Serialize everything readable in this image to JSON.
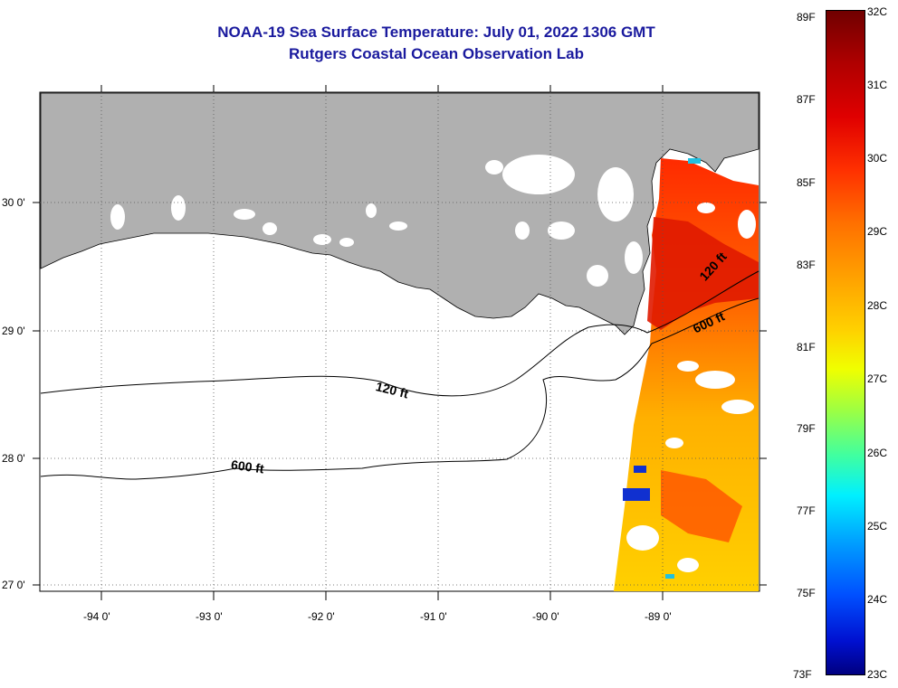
{
  "title": {
    "line1": "NOAA-19 Sea Surface Temperature:  July 01, 2022 1306 GMT",
    "line2": "Rutgers Coastal Ocean Observation Lab"
  },
  "axes": {
    "lat_labels": [
      "30 0'",
      "29 0'",
      "28 0'",
      "27 0'"
    ],
    "lon_labels": [
      "-94 0'",
      "-93 0'",
      "-92 0'",
      "-91 0'",
      "-90 0'",
      "-89 0'"
    ]
  },
  "contours": {
    "label_120_a": "120 ft",
    "label_600_a": "600 ft",
    "label_120_b": "120 ft",
    "label_600_b": "600 ft"
  },
  "colorbar": {
    "f_labels": [
      "89F",
      "87F",
      "85F",
      "83F",
      "81F",
      "79F",
      "77F",
      "75F",
      "73F"
    ],
    "c_labels": [
      "32C",
      "31C",
      "30C",
      "29C",
      "28C",
      "27C",
      "26C",
      "25C",
      "24C",
      "23C"
    ],
    "min_c": 23,
    "max_c": 32
  },
  "colors": {
    "land": "#b0b0b0",
    "title": "#1a1a9e"
  }
}
